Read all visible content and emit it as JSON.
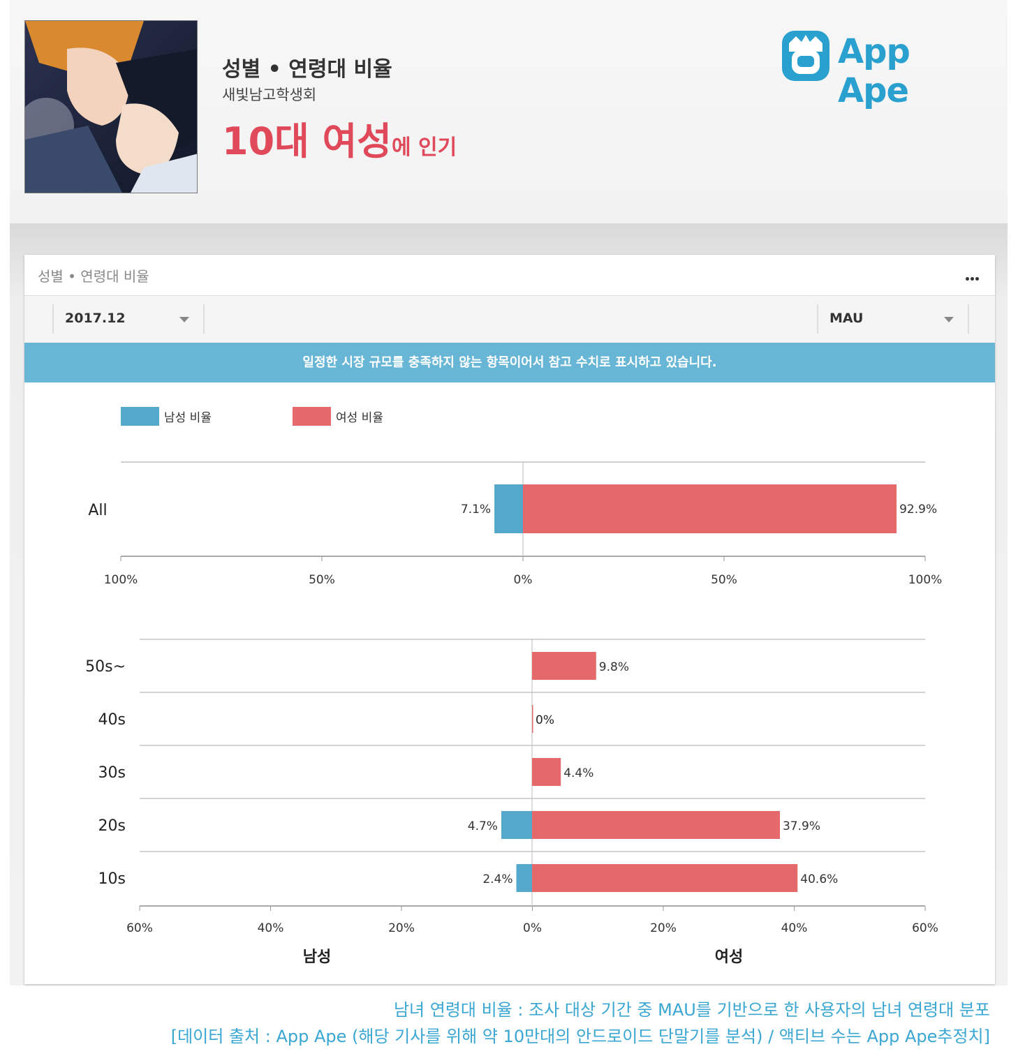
{
  "header": {
    "title": "성별 • 연령대 비율",
    "subtitle": "새빛남고학생회",
    "headline_big": "10대 여성",
    "headline_small": "에 인기",
    "logo_text": "App Ape",
    "logo_color": "#2aa0cf"
  },
  "panel": {
    "title": "성별 • 연령대 비율",
    "more_icon": "more-dots-icon",
    "date_select": "2017.12",
    "metric_select": "MAU",
    "notice": "일정한 시장 규모를 충족하지 않는 항목이어서 참고 수치로 표시하고 있습니다."
  },
  "chart_data": [
    {
      "type": "bar",
      "orientation": "horizontal-diverging",
      "categories": [
        "All"
      ],
      "series": [
        {
          "name": "남성 비율",
          "color": "#54a8cc",
          "values": [
            7.1
          ]
        },
        {
          "name": "여성 비율",
          "color": "#e5696a",
          "values": [
            92.9
          ]
        }
      ],
      "xlim": [
        -100,
        100
      ],
      "xticks": [
        "100%",
        "50%",
        "0%",
        "50%",
        "100%"
      ],
      "legend": "top-left"
    },
    {
      "type": "bar",
      "orientation": "horizontal-diverging",
      "categories": [
        "50s~",
        "40s",
        "30s",
        "20s",
        "10s"
      ],
      "series": [
        {
          "name": "남성 비율",
          "color": "#54a8cc",
          "values": [
            0,
            0,
            0,
            4.7,
            2.4
          ]
        },
        {
          "name": "여성 비율",
          "color": "#e5696a",
          "values": [
            9.8,
            0,
            4.4,
            37.9,
            40.6
          ]
        }
      ],
      "xlim": [
        -60,
        60
      ],
      "xticks": [
        "60%",
        "40%",
        "20%",
        "0%",
        "20%",
        "40%",
        "60%"
      ],
      "xlabel_left": "남성",
      "xlabel_right": "여성",
      "grid": true
    }
  ],
  "caption": {
    "line1": "남녀 연령대 비율 : 조사 대상 기간 중 MAU를 기반으로 한 사용자의 남녀 연령대 분포",
    "line2": "[데이터 출처 : App Ape (해당 기사를 위해 약 10만대의 안드로이드 단말기를 분석) / 액티브 수는 App Ape추정치]"
  }
}
